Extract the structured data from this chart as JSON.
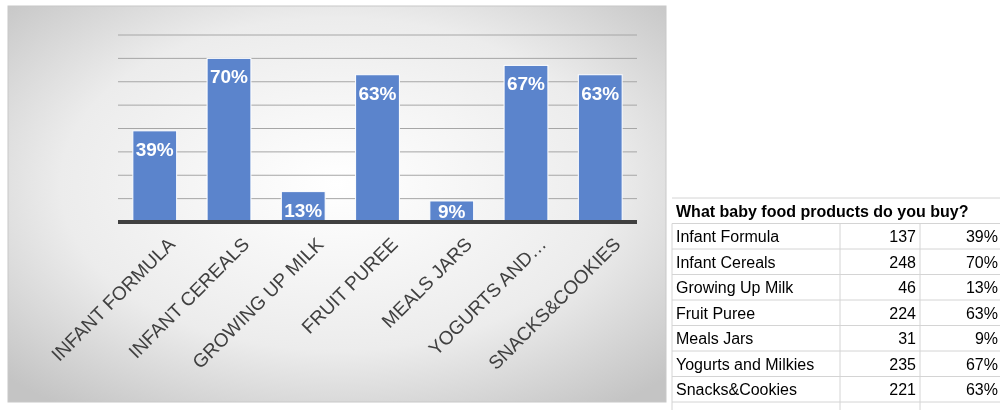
{
  "chart_data": [
    {
      "type": "bar",
      "categories": [
        "INFANT FORMULA",
        "INFANT CEREALS",
        "GROWING UP MILK",
        "FRUIT PUREE",
        "MEALS JARS",
        "YOGURTS AND…",
        "SNACKS&COOKIES"
      ],
      "values": [
        39,
        70,
        13,
        63,
        9,
        67,
        63
      ],
      "value_labels": [
        "39%",
        "70%",
        "13%",
        "63%",
        "9%",
        "67%",
        "63%"
      ],
      "color": "#5b84cc",
      "ylim": [
        0,
        80
      ],
      "yticks": [
        {
          "value": 0,
          "label": null
        },
        {
          "value": 10,
          "label": null
        },
        {
          "value": 20,
          "label": null
        },
        {
          "value": 30,
          "label": null
        },
        {
          "value": 40,
          "label": null
        },
        {
          "value": 50,
          "label": null
        },
        {
          "value": 60,
          "label": null
        },
        {
          "value": 70,
          "label": null
        },
        {
          "value": 80,
          "label": null
        }
      ],
      "grid": "y",
      "tick_labels": "x"
    },
    {
      "type": "other",
      "title": "What baby food products do you buy?",
      "categories": [
        "Infant Formula",
        "Infant Cereals",
        "Growing Up Milk",
        "Fruit Puree",
        "Meals Jars",
        "Yogurts and Milkies",
        "Snacks&Cookies"
      ],
      "data_labels": true,
      "series": [
        {
          "values": [
            137,
            248,
            46,
            224,
            31,
            235,
            221
          ]
        },
        {
          "values": [
            39,
            70,
            13,
            63,
            9,
            67,
            63
          ],
          "value_labels": [
            "39%",
            "70%",
            "13%",
            "63%",
            "9%",
            "67%",
            "63%"
          ]
        }
      ]
    }
  ]
}
